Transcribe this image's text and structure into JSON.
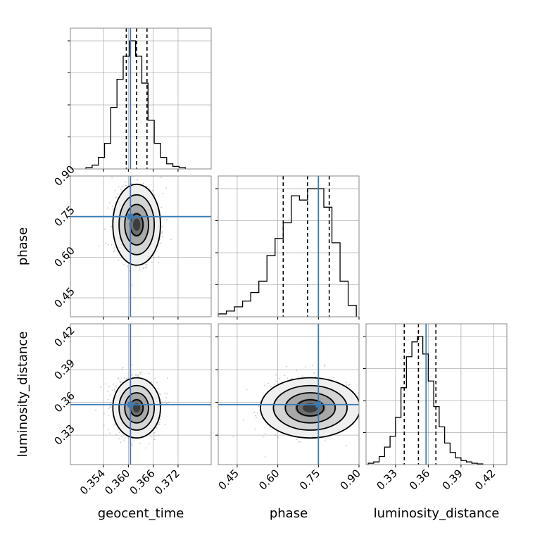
{
  "chart_data": {
    "type": "corner",
    "parameters": [
      "geocent_time",
      "phase",
      "luminosity_distance"
    ],
    "axes": {
      "geocent_time": {
        "label": "geocent_time",
        "range": [
          0.346,
          0.38
        ],
        "ticks": [
          0.354,
          0.36,
          0.366,
          0.372
        ],
        "tick_labels": [
          "0.354",
          "0.360",
          "0.366",
          "0.372"
        ],
        "truth": 0.3605,
        "quantiles": [
          0.3595,
          0.362,
          0.3645
        ]
      },
      "phase": {
        "label": "phase",
        "range": [
          0.38,
          0.9
        ],
        "ticks": [
          0.45,
          0.6,
          0.75,
          0.9
        ],
        "tick_labels": [
          "0.45",
          "0.60",
          "0.75",
          "0.90"
        ],
        "truth": 0.75,
        "quantiles": [
          0.62,
          0.71,
          0.79
        ]
      },
      "luminosity_distance": {
        "label": "luminosity_distance",
        "range": [
          0.303,
          0.432
        ],
        "ticks": [
          0.33,
          0.36,
          0.39,
          0.42
        ],
        "tick_labels": [
          "0.33",
          "0.36",
          "0.39",
          "0.42"
        ],
        "truth": 0.358,
        "quantiles": [
          0.338,
          0.351,
          0.367
        ]
      }
    },
    "histograms": {
      "geocent_time": {
        "bins": [
          0.3505,
          0.352,
          0.3535,
          0.355,
          0.3565,
          0.358,
          0.3595,
          0.361,
          0.3625,
          0.364,
          0.3655,
          0.367,
          0.3685,
          0.37,
          0.3715,
          0.373
        ],
        "counts": [
          1,
          3,
          9,
          20,
          48,
          70,
          88,
          100,
          88,
          67,
          38,
          20,
          9,
          4,
          2,
          1
        ]
      },
      "phase": {
        "bins": [
          0.395,
          0.425,
          0.455,
          0.485,
          0.515,
          0.545,
          0.575,
          0.605,
          0.635,
          0.665,
          0.695,
          0.725,
          0.755,
          0.785,
          0.815,
          0.845,
          0.875
        ],
        "counts": [
          2,
          4,
          7,
          11,
          17,
          25,
          43,
          55,
          66,
          85,
          82,
          90,
          90,
          77,
          52,
          25,
          8
        ]
      },
      "luminosity_distance": {
        "bins": [
          0.3075,
          0.3125,
          0.3175,
          0.3225,
          0.3275,
          0.3325,
          0.3375,
          0.3425,
          0.3475,
          0.3525,
          0.3575,
          0.3625,
          0.3675,
          0.3725,
          0.3775,
          0.3825,
          0.3875,
          0.3925,
          0.3975,
          0.4025,
          0.4075
        ],
        "counts": [
          1,
          2,
          6,
          13,
          21,
          35,
          57,
          80,
          91,
          95,
          82,
          62,
          43,
          28,
          16,
          9,
          5,
          3,
          2,
          1,
          0.5
        ]
      }
    },
    "pairs": [
      {
        "x": "geocent_time",
        "y": "phase",
        "center": [
          0.362,
          0.72
        ],
        "spread": [
          0.0025,
          0.065
        ]
      },
      {
        "x": "geocent_time",
        "y": "luminosity_distance",
        "center": [
          0.362,
          0.355
        ],
        "spread": [
          0.0025,
          0.012
        ]
      },
      {
        "x": "phase",
        "y": "luminosity_distance",
        "center": [
          0.72,
          0.355
        ],
        "spread": [
          0.08,
          0.012
        ]
      }
    ],
    "grid": true
  }
}
